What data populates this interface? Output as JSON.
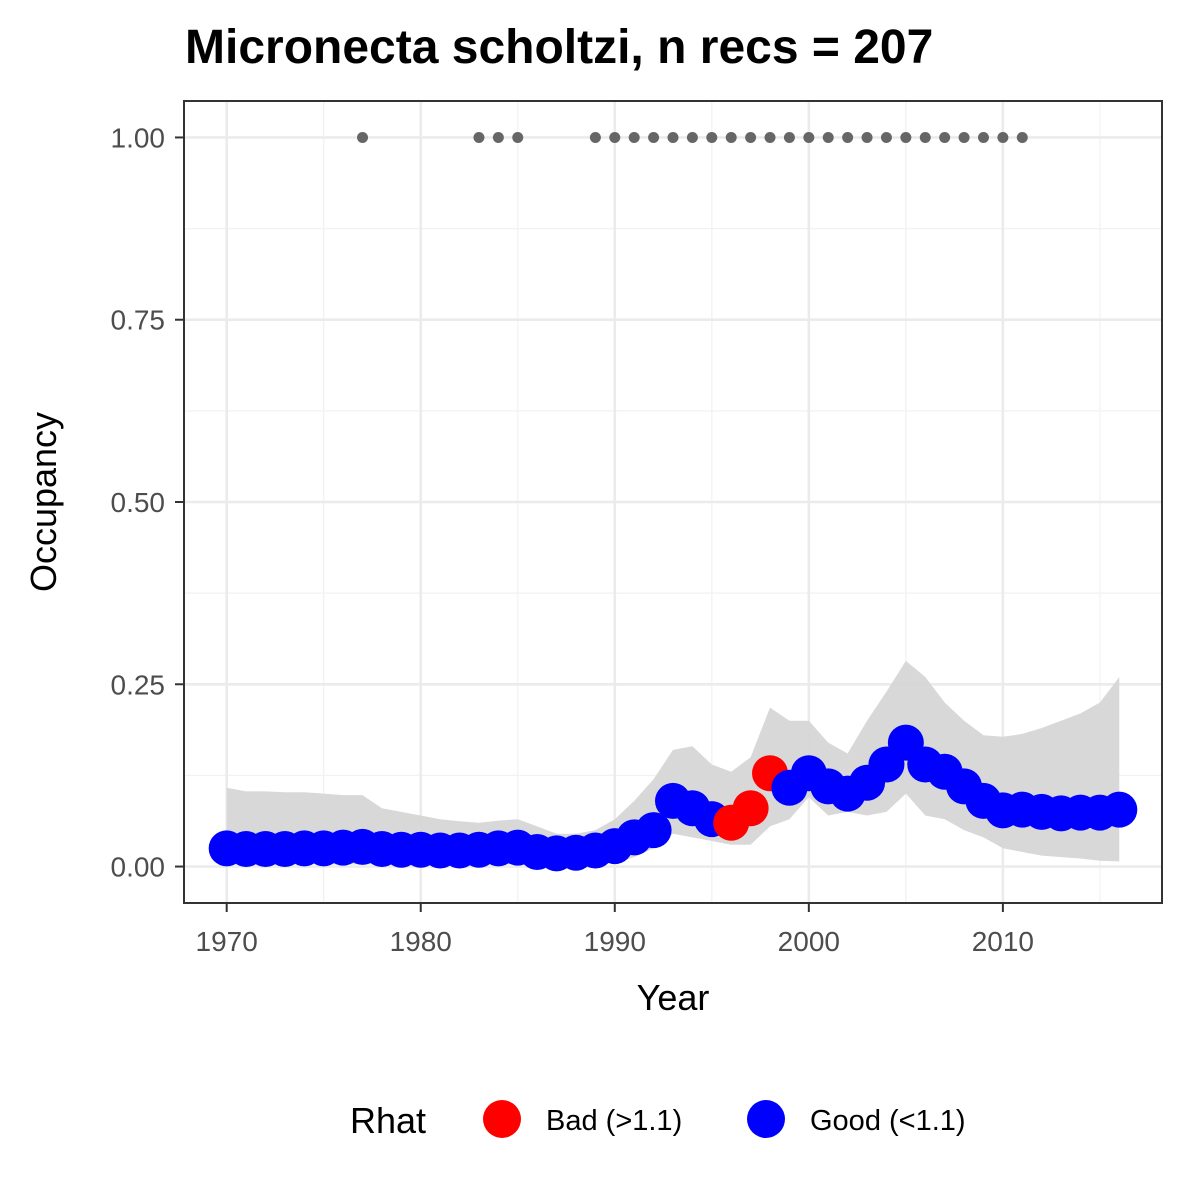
{
  "chart_data": {
    "type": "scatter",
    "title": "Micronecta scholtzi, n recs = 207",
    "xlabel": "Year",
    "ylabel": "Occupancy",
    "xlim": [
      1967.8,
      2018.2
    ],
    "ylim": [
      -0.05,
      1.05
    ],
    "x_ticks": [
      1970,
      1980,
      1990,
      2000,
      2010
    ],
    "x_tick_labels": [
      "1970",
      "1980",
      "1990",
      "2000",
      "2010"
    ],
    "y_ticks": [
      0.0,
      0.25,
      0.5,
      0.75,
      1.0
    ],
    "y_tick_labels": [
      "0.00",
      "0.25",
      "0.50",
      "0.75",
      "1.00"
    ],
    "grid": true,
    "legend": {
      "title": "Rhat",
      "position": "bottom",
      "entries": [
        {
          "label": "Bad (>1.1)",
          "color": "#ff0000"
        },
        {
          "label": "Good (<1.1)",
          "color": "#0000ff"
        }
      ]
    },
    "colors": {
      "bad": "#ff0000",
      "good": "#0000ff",
      "ribbon": "#d6d6d6",
      "record": "#666666"
    },
    "years": [
      1970,
      1971,
      1972,
      1973,
      1974,
      1975,
      1976,
      1977,
      1978,
      1979,
      1980,
      1981,
      1982,
      1983,
      1984,
      1985,
      1986,
      1987,
      1988,
      1989,
      1990,
      1991,
      1992,
      1993,
      1994,
      1995,
      1996,
      1997,
      1998,
      1999,
      2000,
      2001,
      2002,
      2003,
      2004,
      2005,
      2006,
      2007,
      2008,
      2009,
      2010,
      2011,
      2012,
      2013,
      2014,
      2015,
      2016
    ],
    "occupancy": [
      0.025,
      0.024,
      0.024,
      0.024,
      0.025,
      0.025,
      0.026,
      0.027,
      0.024,
      0.023,
      0.023,
      0.022,
      0.022,
      0.023,
      0.025,
      0.026,
      0.02,
      0.018,
      0.019,
      0.022,
      0.028,
      0.04,
      0.05,
      0.09,
      0.08,
      0.065,
      0.06,
      0.08,
      0.128,
      0.108,
      0.128,
      0.11,
      0.1,
      0.115,
      0.14,
      0.17,
      0.14,
      0.13,
      0.11,
      0.09,
      0.077,
      0.078,
      0.075,
      0.073,
      0.074,
      0.074,
      0.078
    ],
    "lower": [
      0.003,
      0.003,
      0.003,
      0.003,
      0.003,
      0.003,
      0.003,
      0.003,
      0.003,
      0.003,
      0.003,
      0.003,
      0.003,
      0.003,
      0.003,
      0.003,
      0.003,
      0.003,
      0.003,
      0.003,
      0.005,
      0.013,
      0.025,
      0.045,
      0.04,
      0.035,
      0.03,
      0.03,
      0.055,
      0.065,
      0.095,
      0.07,
      0.075,
      0.07,
      0.075,
      0.1,
      0.07,
      0.065,
      0.05,
      0.04,
      0.025,
      0.02,
      0.015,
      0.013,
      0.011,
      0.008,
      0.007
    ],
    "upper": [
      0.108,
      0.103,
      0.103,
      0.102,
      0.102,
      0.1,
      0.098,
      0.098,
      0.08,
      0.075,
      0.07,
      0.065,
      0.062,
      0.06,
      0.063,
      0.065,
      0.055,
      0.045,
      0.045,
      0.05,
      0.065,
      0.09,
      0.12,
      0.16,
      0.165,
      0.14,
      0.13,
      0.15,
      0.218,
      0.2,
      0.2,
      0.17,
      0.155,
      0.2,
      0.24,
      0.282,
      0.26,
      0.225,
      0.2,
      0.18,
      0.178,
      0.182,
      0.19,
      0.2,
      0.21,
      0.225,
      0.26
    ],
    "rhat": [
      "good",
      "good",
      "good",
      "good",
      "good",
      "good",
      "good",
      "good",
      "good",
      "good",
      "good",
      "good",
      "good",
      "good",
      "good",
      "good",
      "good",
      "good",
      "good",
      "good",
      "good",
      "good",
      "good",
      "good",
      "good",
      "good",
      "bad",
      "bad",
      "bad",
      "good",
      "good",
      "good",
      "good",
      "good",
      "good",
      "good",
      "good",
      "good",
      "good",
      "good",
      "good",
      "good",
      "good",
      "good",
      "good",
      "good",
      "good"
    ],
    "record_years": [
      1977,
      1983,
      1984,
      1985,
      1989,
      1990,
      1991,
      1992,
      1993,
      1994,
      1995,
      1996,
      1997,
      1998,
      1999,
      2000,
      2001,
      2002,
      2003,
      2004,
      2005,
      2006,
      2007,
      2008,
      2009,
      2010,
      2011
    ],
    "record_value": 1.0
  }
}
